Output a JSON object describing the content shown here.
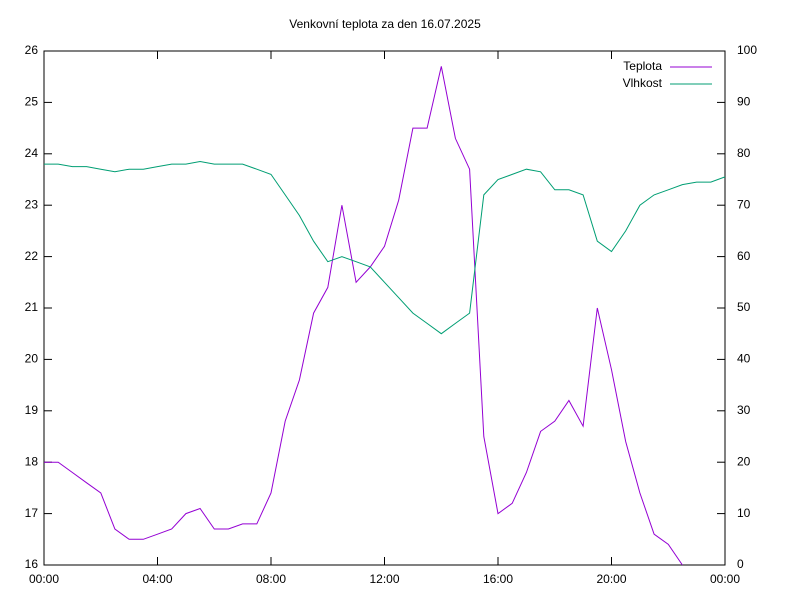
{
  "chart_data": {
    "type": "line",
    "title": "Venkovní teplota za den 16.07.2025",
    "x": [
      0,
      0.5,
      1,
      1.5,
      2,
      2.5,
      3,
      3.5,
      4,
      4.5,
      5,
      5.5,
      6,
      6.5,
      7,
      7.5,
      8,
      8.5,
      9,
      9.5,
      10,
      10.5,
      11,
      11.5,
      12,
      12.5,
      13,
      13.5,
      14,
      14.5,
      15,
      15.5,
      16,
      16.5,
      17,
      17.5,
      18,
      18.5,
      19,
      19.5,
      20,
      20.5,
      21,
      21.5,
      22,
      22.5,
      23,
      23.5,
      24
    ],
    "xlim": [
      0,
      24
    ],
    "xticks": [
      {
        "value": 0,
        "label": "00:00"
      },
      {
        "value": 4,
        "label": "04:00"
      },
      {
        "value": 8,
        "label": "08:00"
      },
      {
        "value": 12,
        "label": "12:00"
      },
      {
        "value": 16,
        "label": "16:00"
      },
      {
        "value": 20,
        "label": "20:00"
      },
      {
        "value": 24,
        "label": "00:00"
      }
    ],
    "ylim": [
      16,
      26
    ],
    "yticks": [
      16,
      17,
      18,
      19,
      20,
      21,
      22,
      23,
      24,
      25,
      26
    ],
    "y2lim": [
      0,
      100
    ],
    "y2ticks": [
      0,
      10,
      20,
      30,
      40,
      50,
      60,
      70,
      80,
      90,
      100
    ],
    "legend": "top-right",
    "series": [
      {
        "name": "Teplota",
        "color": "#9400d3",
        "values": [
          18.0,
          18.0,
          17.8,
          17.6,
          17.4,
          16.7,
          16.5,
          16.5,
          16.6,
          16.7,
          17.0,
          17.1,
          16.7,
          16.7,
          16.8,
          16.8,
          17.4,
          18.8,
          19.6,
          20.9,
          21.4,
          23.0,
          21.5,
          21.8,
          22.2,
          23.1,
          24.5,
          24.5,
          25.7,
          24.3,
          23.7,
          18.5,
          17.0,
          17.2,
          17.8,
          18.6,
          18.8,
          19.2,
          18.7,
          21.0,
          19.8,
          18.4,
          17.4,
          16.6,
          16.4,
          16.0,
          null,
          null,
          null
        ]
      },
      {
        "name": "Vlhkost",
        "color": "#009e73",
        "axis": "y2",
        "values": [
          78,
          78,
          77.5,
          77.5,
          77,
          76.5,
          77,
          77,
          77.5,
          78,
          78,
          78.5,
          78,
          78,
          78,
          77,
          76,
          72,
          68,
          63,
          59,
          60,
          59,
          58,
          55,
          52,
          49,
          47,
          45,
          47,
          49,
          72,
          75,
          76,
          77,
          76.5,
          73,
          73,
          72,
          63,
          61,
          65,
          70,
          72,
          73,
          74,
          74.5,
          74.5,
          75.5
        ]
      }
    ]
  }
}
